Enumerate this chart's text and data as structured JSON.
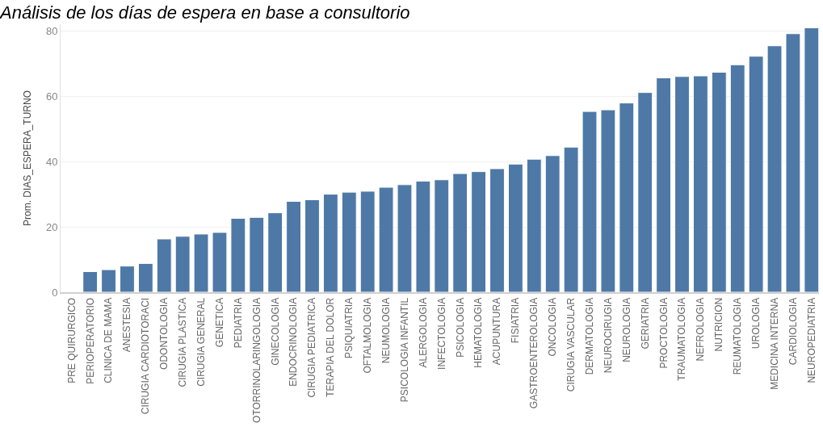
{
  "chart_data": {
    "type": "bar",
    "title": "Análisis de los días de espera en base a consultorio",
    "ylabel": "Prom. DIAS_ESPERA_TURNO",
    "categories": [
      "PRE QUIRURGICO",
      "PERIOPERATORIO",
      "CLINICA DE MAMA",
      "ANESTESIA",
      "CIRUGIA CARDIOTORACI",
      "ODONTOLOGIA",
      "CIRUGIA PLASTICA",
      "CIRUGIA GENERAL",
      "GENETICA",
      "PEDIATRIA",
      "OTORRINOLARINGOLOGIA",
      "GINECOLOGIA",
      "ENDOCRINOLOGIA",
      "CIRUGIA PEDIATRICA",
      "TERAPIA DEL DOLOR",
      "PSIQUIATRIA",
      "OFTALMOLOGIA",
      "NEUMOLOGIA",
      "PSICOLOGIA INFANTIL",
      "ALERGOLOGIA",
      "INFECTOLOGIA",
      "PSICOLOGIA",
      "HEMATOLOGIA",
      "ACUPUNTURA",
      "FISIATRIA",
      "GASTROENTEROLOGIA",
      "ONCOLOGIA",
      "CIRUGIA VASCULAR",
      "DERMATOLOGIA",
      "NEUROCIRUGIA",
      "NEUROLOGIA",
      "GERIATRIA",
      "PROCTOLOGIA",
      "TRAUMATOLOGIA",
      "NEFROLOGIA",
      "NUTRICION",
      "REUMATOLOGIA",
      "UROLOGIA",
      "MEDICINA INTERNA",
      "CARDIOLOGIA",
      "NEUROPEDIATRIA"
    ],
    "values": [
      null,
      6.3,
      6.9,
      8.0,
      8.8,
      16.3,
      17.1,
      17.8,
      18.3,
      22.6,
      22.9,
      24.3,
      27.8,
      28.3,
      30.0,
      30.6,
      30.9,
      32.1,
      32.9,
      34.0,
      34.4,
      36.3,
      36.9,
      37.8,
      39.2,
      40.7,
      41.8,
      44.4,
      55.3,
      55.8,
      57.9,
      61.1,
      65.6,
      66.0,
      66.2,
      67.3,
      69.6,
      72.2,
      75.4,
      79.1,
      80.9
    ],
    "color": "#4e79a7",
    "ylim": [
      0,
      82
    ],
    "yticks": [
      0,
      20,
      40,
      60,
      80
    ],
    "grid": "y",
    "legend": false
  }
}
